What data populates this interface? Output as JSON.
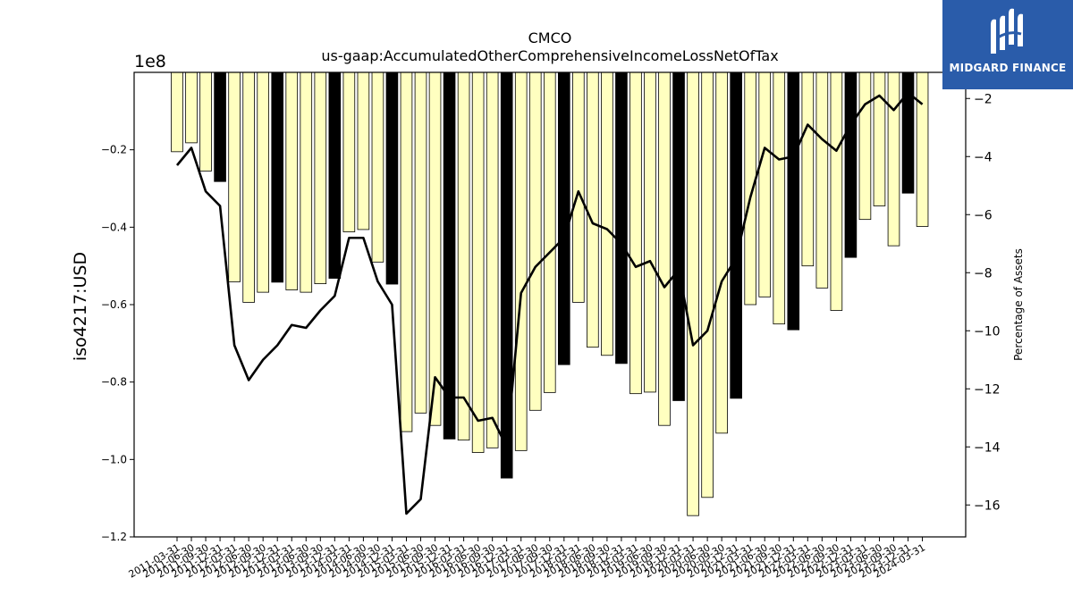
{
  "chart_data": {
    "type": "bar",
    "title": "CMCO",
    "subtitle": "us-gaap:AccumulatedOtherComprehensiveIncomeLossNetOfTax",
    "ylabel": "iso4217:USD",
    "y_offset_label": "1e8",
    "ylabel_right": "Percentage of Assets",
    "ylim": [
      -1.2,
      0
    ],
    "ylim_right": [
      -17.1,
      -1.1
    ],
    "yticks": [
      -1.2,
      -1.0,
      -0.8,
      -0.6,
      -0.4,
      -0.2
    ],
    "yticks_right": [
      -16,
      -14,
      -12,
      -10,
      -8,
      -6,
      -4,
      -2
    ],
    "grid": false,
    "bar_colors": {
      "quarter": "#ffffc0",
      "fiscal_year_end": "#000000"
    },
    "line_color": "#000000",
    "categories": [
      "2011-03-31",
      "2011-06-30",
      "2011-09-30",
      "2011-12-31",
      "2012-03-31",
      "2012-06-30",
      "2012-09-30",
      "2012-12-31",
      "2013-03-31",
      "2013-06-30",
      "2013-09-30",
      "2013-12-31",
      "2014-03-31",
      "2014-06-30",
      "2014-09-30",
      "2014-12-31",
      "2015-03-31",
      "2015-06-30",
      "2015-09-30",
      "2015-12-31",
      "2016-03-31",
      "2016-06-30",
      "2016-09-30",
      "2016-12-31",
      "2017-03-31",
      "2017-06-30",
      "2017-09-30",
      "2017-12-31",
      "2018-03-31",
      "2018-06-30",
      "2018-09-30",
      "2018-12-31",
      "2019-03-31",
      "2019-06-30",
      "2019-09-30",
      "2019-12-31",
      "2020-03-31",
      "2020-06-30",
      "2020-09-30",
      "2020-12-31",
      "2021-03-31",
      "2021-06-30",
      "2021-09-30",
      "2021-12-31",
      "2022-03-31",
      "2022-06-30",
      "2022-09-30",
      "2022-12-31",
      "2023-03-31",
      "2023-06-30",
      "2023-09-30",
      "2023-12-31",
      "2024-03-31"
    ],
    "series": [
      {
        "values": [
          -0.205,
          -0.182,
          -0.255,
          -0.282,
          -0.541,
          -0.594,
          -0.568,
          -0.542,
          -0.562,
          -0.568,
          -0.546,
          -0.532,
          -0.412,
          -0.406,
          -0.49,
          -0.547,
          -0.928,
          -0.88,
          -0.912,
          -0.947,
          -0.95,
          -0.982,
          -0.97,
          -1.048,
          -0.977,
          -0.873,
          -0.827,
          -0.755,
          -0.594,
          -0.71,
          -0.731,
          -0.752,
          -0.83,
          -0.826,
          -0.912,
          -0.848,
          -1.145,
          -1.098,
          -0.932,
          -0.842,
          -0.6,
          -0.58,
          -0.65,
          -0.665,
          -0.5,
          -0.557,
          -0.615,
          -0.478,
          -0.38,
          -0.345,
          -0.448,
          -0.312,
          -0.398
        ],
        "highlight": [
          3,
          7,
          11,
          15,
          19,
          23,
          27,
          31,
          35,
          39,
          43,
          47,
          51
        ]
      },
      {
        "axis": "right",
        "values": [
          -4.3,
          -3.7,
          -5.2,
          -5.7,
          -10.5,
          -11.7,
          -11.0,
          -10.5,
          -9.8,
          -9.9,
          -9.3,
          -8.8,
          -6.8,
          -6.8,
          -8.3,
          -9.1,
          -16.3,
          -15.8,
          -11.6,
          -12.3,
          -12.3,
          -13.1,
          -13.0,
          -14.0,
          -8.7,
          -7.8,
          -7.3,
          -6.8,
          -5.2,
          -6.3,
          -6.5,
          -7.0,
          -7.8,
          -7.6,
          -8.5,
          -7.9,
          -10.5,
          -10.0,
          -8.3,
          -7.5,
          -5.4,
          -3.7,
          -4.1,
          -4.0,
          -2.9,
          -3.4,
          -3.8,
          -2.9,
          -2.2,
          -1.9,
          -2.4,
          -1.8,
          -2.2
        ]
      }
    ]
  },
  "brand": {
    "name": "MIDGARD FINANCE",
    "bg_color": "#2a5caa",
    "logo_icon": "midgard-m-logo-icon"
  }
}
